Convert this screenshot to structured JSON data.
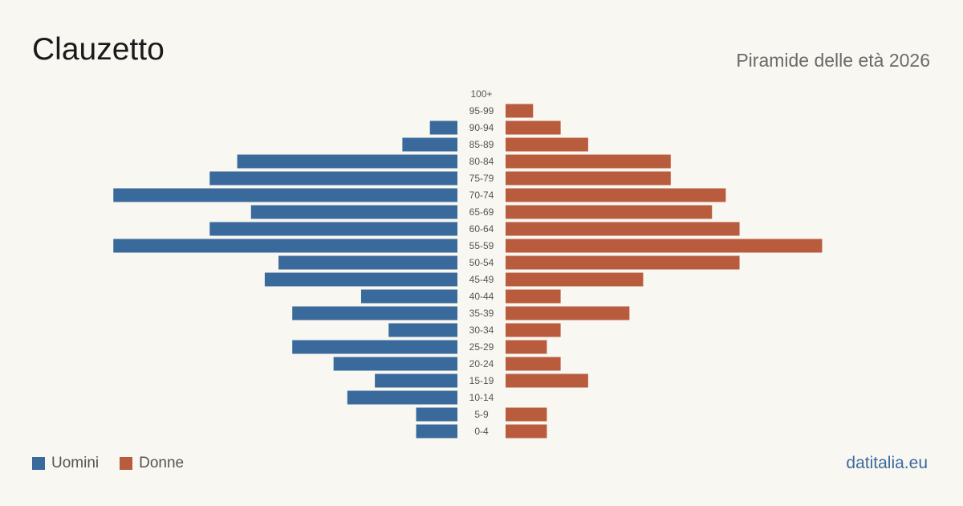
{
  "header": {
    "title": "Clauzetto",
    "subtitle": "Piramide delle età 2026"
  },
  "legend": {
    "men_label": "Uomini",
    "women_label": "Donne"
  },
  "brand": "datitalia.eu",
  "colors": {
    "men": "#3a6a9b",
    "women": "#b95c3d",
    "background": "#f9f7f2"
  },
  "chart_data": {
    "type": "bar",
    "orientation": "horizontal-pyramid",
    "categories": [
      "100+",
      "95-99",
      "90-94",
      "85-89",
      "80-84",
      "75-79",
      "70-74",
      "65-69",
      "60-64",
      "55-59",
      "50-54",
      "45-49",
      "40-44",
      "35-39",
      "30-34",
      "25-29",
      "20-24",
      "15-19",
      "10-14",
      "5-9",
      "0-4"
    ],
    "series": [
      {
        "name": "Uomini",
        "values": [
          0,
          0,
          2,
          4,
          16,
          18,
          25,
          15,
          18,
          25,
          13,
          14,
          7,
          12,
          5,
          12,
          9,
          6,
          8,
          3,
          3
        ]
      },
      {
        "name": "Donne",
        "values": [
          0,
          2,
          4,
          6,
          12,
          12,
          16,
          15,
          17,
          23,
          17,
          10,
          4,
          9,
          4,
          3,
          4,
          6,
          0,
          3,
          3
        ]
      }
    ]
  }
}
